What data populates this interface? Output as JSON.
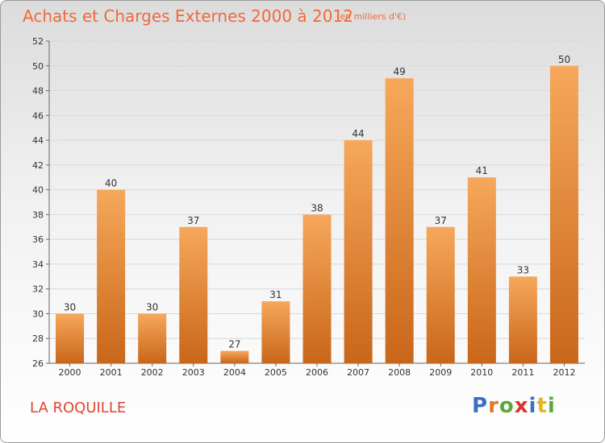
{
  "header": {
    "title": "Achats et Charges Externes 2000 à 2012",
    "subtitle": "(en milliers d'€)"
  },
  "footer": {
    "commune": "LA ROQUILLE",
    "brand": "Proxiti"
  },
  "colors": {
    "bar_light": "#f6a85a",
    "bar_dark": "#c9661a",
    "title": "#ee6a3a",
    "commune": "#e0452f"
  },
  "chart_data": {
    "type": "bar",
    "title": "Achats et Charges Externes 2000 à 2012",
    "subtitle": "(en milliers d'€)",
    "xlabel": "",
    "ylabel": "",
    "categories": [
      "2000",
      "2001",
      "2002",
      "2003",
      "2004",
      "2005",
      "2006",
      "2007",
      "2008",
      "2009",
      "2010",
      "2011",
      "2012"
    ],
    "values": [
      30,
      40,
      30,
      37,
      27,
      31,
      38,
      44,
      49,
      37,
      41,
      33,
      50
    ],
    "ylim": [
      26,
      52
    ],
    "yticks": [
      26,
      28,
      30,
      32,
      34,
      36,
      38,
      40,
      42,
      44,
      46,
      48,
      50,
      52
    ],
    "grid": true,
    "legend": "none"
  }
}
